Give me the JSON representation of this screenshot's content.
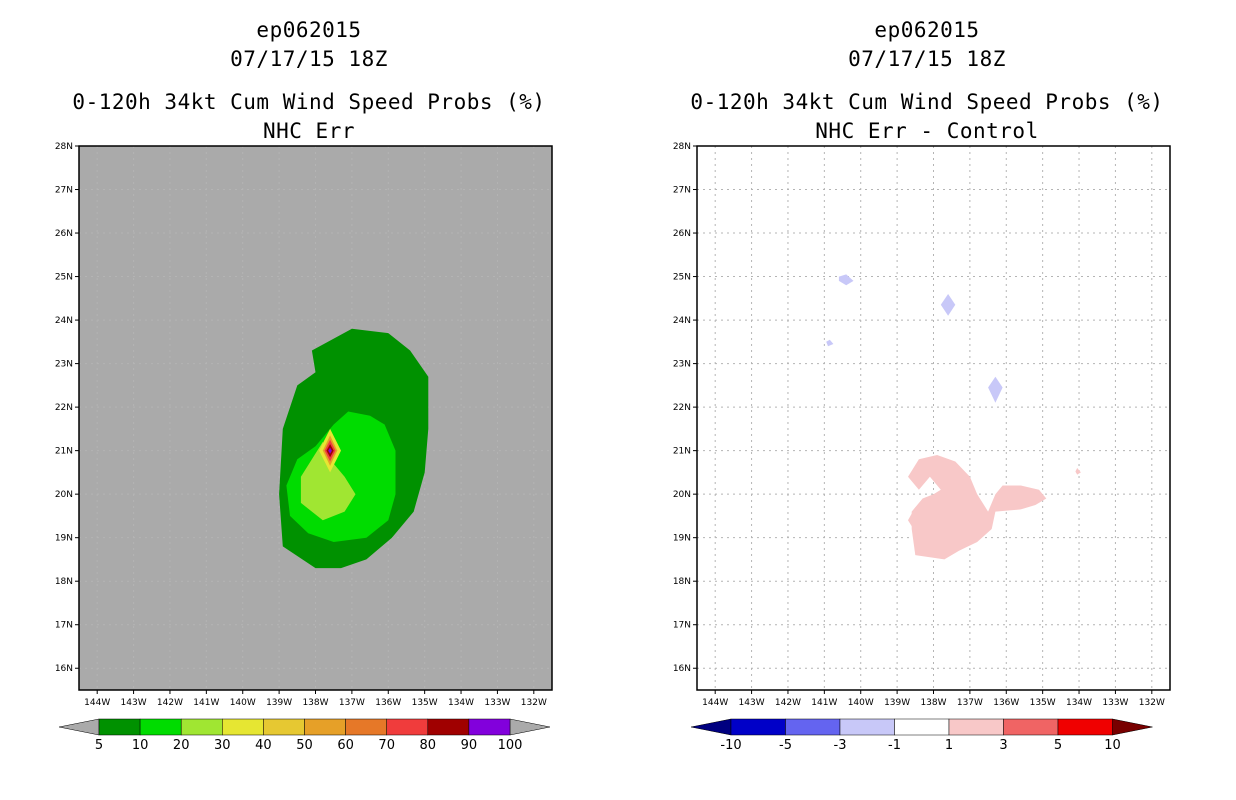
{
  "chart_data": [
    {
      "type": "heatmap",
      "storm_id": "ep062015",
      "datetime": "07/17/15 18Z",
      "title": "0-120h 34kt Cum Wind Speed Probs (%)",
      "subtitle": "NHC Err",
      "xlabel": "",
      "ylabel": "",
      "x_ticks": [
        "144W",
        "143W",
        "142W",
        "141W",
        "140W",
        "139W",
        "138W",
        "137W",
        "136W",
        "135W",
        "134W",
        "133W",
        "132W"
      ],
      "y_ticks": [
        "16N",
        "17N",
        "18N",
        "19N",
        "20N",
        "21N",
        "22N",
        "23N",
        "24N",
        "25N",
        "26N",
        "27N",
        "28N"
      ],
      "xlim": [
        -144.5,
        -131.5
      ],
      "ylim": [
        15.5,
        28.0
      ],
      "grid": true,
      "background_color": "#aaaaaa",
      "colorbar_labels": [
        "5",
        "10",
        "20",
        "30",
        "40",
        "50",
        "60",
        "70",
        "80",
        "90",
        "100"
      ],
      "colorbar_colors": [
        "#009100",
        "#00dc00",
        "#a0e632",
        "#e6e632",
        "#e6c832",
        "#e6a028",
        "#e67828",
        "#f03c3c",
        "#a00000",
        "#8200dc"
      ],
      "regions": [
        {
          "level": "5-10",
          "color": "#009100",
          "points": [
            [
              -138.1,
              23.3
            ],
            [
              -137.0,
              23.8
            ],
            [
              -136.0,
              23.7
            ],
            [
              -135.4,
              23.3
            ],
            [
              -134.9,
              22.7
            ],
            [
              -134.9,
              21.5
            ],
            [
              -135.0,
              20.5
            ],
            [
              -135.3,
              19.6
            ],
            [
              -135.9,
              19.0
            ],
            [
              -136.6,
              18.5
            ],
            [
              -137.3,
              18.3
            ],
            [
              -138.0,
              18.3
            ],
            [
              -138.9,
              18.8
            ],
            [
              -139.0,
              20.0
            ],
            [
              -138.9,
              21.5
            ],
            [
              -138.5,
              22.5
            ],
            [
              -138.0,
              22.8
            ]
          ]
        },
        {
          "level": "10-20",
          "color": "#00dc00",
          "points": [
            [
              -137.1,
              21.9
            ],
            [
              -136.5,
              21.8
            ],
            [
              -136.1,
              21.6
            ],
            [
              -135.8,
              21.0
            ],
            [
              -135.8,
              20.0
            ],
            [
              -136.0,
              19.4
            ],
            [
              -136.6,
              19.0
            ],
            [
              -137.5,
              18.9
            ],
            [
              -138.2,
              19.1
            ],
            [
              -138.7,
              19.5
            ],
            [
              -138.8,
              20.2
            ],
            [
              -138.5,
              20.8
            ],
            [
              -138.0,
              21.1
            ],
            [
              -137.5,
              21.6
            ]
          ]
        },
        {
          "level": "20-30",
          "color": "#a0e632",
          "points": [
            [
              -137.8,
              21.2
            ],
            [
              -137.5,
              20.7
            ],
            [
              -137.2,
              20.4
            ],
            [
              -136.9,
              20.0
            ],
            [
              -137.2,
              19.6
            ],
            [
              -137.8,
              19.4
            ],
            [
              -138.4,
              19.8
            ],
            [
              -138.4,
              20.4
            ],
            [
              -138.1,
              20.8
            ]
          ]
        },
        {
          "level": "30-40",
          "color": "#e6e632",
          "points": [
            [
              -137.6,
              21.5
            ],
            [
              -137.3,
              21.0
            ],
            [
              -137.6,
              20.5
            ],
            [
              -137.9,
              21.0
            ]
          ]
        },
        {
          "level": "40-60",
          "color": "#e6a028",
          "points": [
            [
              -137.6,
              21.35
            ],
            [
              -137.4,
              21.0
            ],
            [
              -137.6,
              20.65
            ],
            [
              -137.8,
              21.0
            ]
          ]
        },
        {
          "level": "60-80",
          "color": "#f03c3c",
          "points": [
            [
              -137.6,
              21.25
            ],
            [
              -137.45,
              21.0
            ],
            [
              -137.6,
              20.75
            ],
            [
              -137.75,
              21.0
            ]
          ]
        },
        {
          "level": "80-90",
          "color": "#a00000",
          "points": [
            [
              -137.6,
              21.15
            ],
            [
              -137.5,
              21.0
            ],
            [
              -137.6,
              20.85
            ],
            [
              -137.7,
              21.0
            ]
          ]
        },
        {
          "level": "90-100",
          "color": "#8200dc",
          "points": [
            [
              -137.6,
              21.07
            ],
            [
              -137.55,
              21.0
            ],
            [
              -137.6,
              20.93
            ],
            [
              -137.65,
              21.0
            ]
          ]
        }
      ]
    },
    {
      "type": "heatmap",
      "storm_id": "ep062015",
      "datetime": "07/17/15 18Z",
      "title": "0-120h 34kt Cum Wind Speed Probs (%)",
      "subtitle": "NHC Err - Control",
      "xlabel": "",
      "ylabel": "",
      "x_ticks": [
        "144W",
        "143W",
        "142W",
        "141W",
        "140W",
        "139W",
        "138W",
        "137W",
        "136W",
        "135W",
        "134W",
        "133W",
        "132W"
      ],
      "y_ticks": [
        "16N",
        "17N",
        "18N",
        "19N",
        "20N",
        "21N",
        "22N",
        "23N",
        "24N",
        "25N",
        "26N",
        "27N",
        "28N"
      ],
      "xlim": [
        -144.5,
        -131.5
      ],
      "ylim": [
        15.5,
        28.0
      ],
      "grid": true,
      "background_color": "#ffffff",
      "colorbar_labels": [
        "-10",
        "-5",
        "-3",
        "-1",
        "1",
        "3",
        "5",
        "10"
      ],
      "colorbar_colors": [
        "#0000c8",
        "#6464f0",
        "#c8c8f8",
        "#ffffff",
        "#f8c8c8",
        "#f06464",
        "#f00000"
      ],
      "regions": [
        {
          "level": "-3 to -1",
          "color": "#c8c8f8",
          "points": [
            [
              -140.6,
              25.0
            ],
            [
              -140.4,
              25.05
            ],
            [
              -140.2,
              24.9
            ],
            [
              -140.4,
              24.8
            ],
            [
              -140.6,
              24.9
            ]
          ]
        },
        {
          "level": "-3 to -1",
          "color": "#c8c8f8",
          "points": [
            [
              -137.6,
              24.6
            ],
            [
              -137.4,
              24.35
            ],
            [
              -137.6,
              24.1
            ],
            [
              -137.8,
              24.35
            ]
          ]
        },
        {
          "level": "-3 to -1",
          "color": "#c8c8f8",
          "points": [
            [
              -140.95,
              23.5
            ],
            [
              -140.85,
              23.55
            ],
            [
              -140.75,
              23.45
            ],
            [
              -140.9,
              23.4
            ]
          ]
        },
        {
          "level": "-3 to -1",
          "color": "#c8c8f8",
          "points": [
            [
              -136.3,
              22.7
            ],
            [
              -136.1,
              22.45
            ],
            [
              -136.3,
              22.1
            ],
            [
              -136.5,
              22.45
            ]
          ]
        },
        {
          "level": "1 to 3",
          "color": "#f8c8c8",
          "points": [
            [
              -138.4,
              20.8
            ],
            [
              -137.9,
              20.9
            ],
            [
              -137.4,
              20.75
            ],
            [
              -137.0,
              20.4
            ],
            [
              -136.8,
              20.0
            ],
            [
              -136.5,
              19.6
            ],
            [
              -136.3,
              20.0
            ],
            [
              -136.1,
              20.2
            ],
            [
              -135.6,
              20.2
            ],
            [
              -135.1,
              20.1
            ],
            [
              -134.9,
              19.9
            ],
            [
              -135.2,
              19.75
            ],
            [
              -135.6,
              19.65
            ],
            [
              -136.3,
              19.6
            ],
            [
              -136.4,
              19.2
            ],
            [
              -136.8,
              18.9
            ],
            [
              -137.3,
              18.7
            ],
            [
              -137.7,
              18.5
            ],
            [
              -138.5,
              18.6
            ],
            [
              -138.6,
              19.2
            ],
            [
              -138.6,
              19.6
            ],
            [
              -138.3,
              19.9
            ],
            [
              -138.0,
              20.0
            ],
            [
              -137.8,
              20.1
            ],
            [
              -138.1,
              20.4
            ],
            [
              -138.4,
              20.1
            ],
            [
              -138.7,
              20.4
            ]
          ]
        },
        {
          "level": "1 to 3",
          "color": "#f8c8c8",
          "points": [
            [
              -138.5,
              19.7
            ],
            [
              -138.2,
              19.4
            ],
            [
              -138.4,
              19.0
            ],
            [
              -138.7,
              19.4
            ]
          ]
        },
        {
          "level": "1 to 3",
          "color": "#f8c8c8",
          "points": [
            [
              -134.05,
              20.6
            ],
            [
              -133.95,
              20.5
            ],
            [
              -134.05,
              20.45
            ],
            [
              -134.1,
              20.52
            ]
          ]
        }
      ]
    }
  ]
}
